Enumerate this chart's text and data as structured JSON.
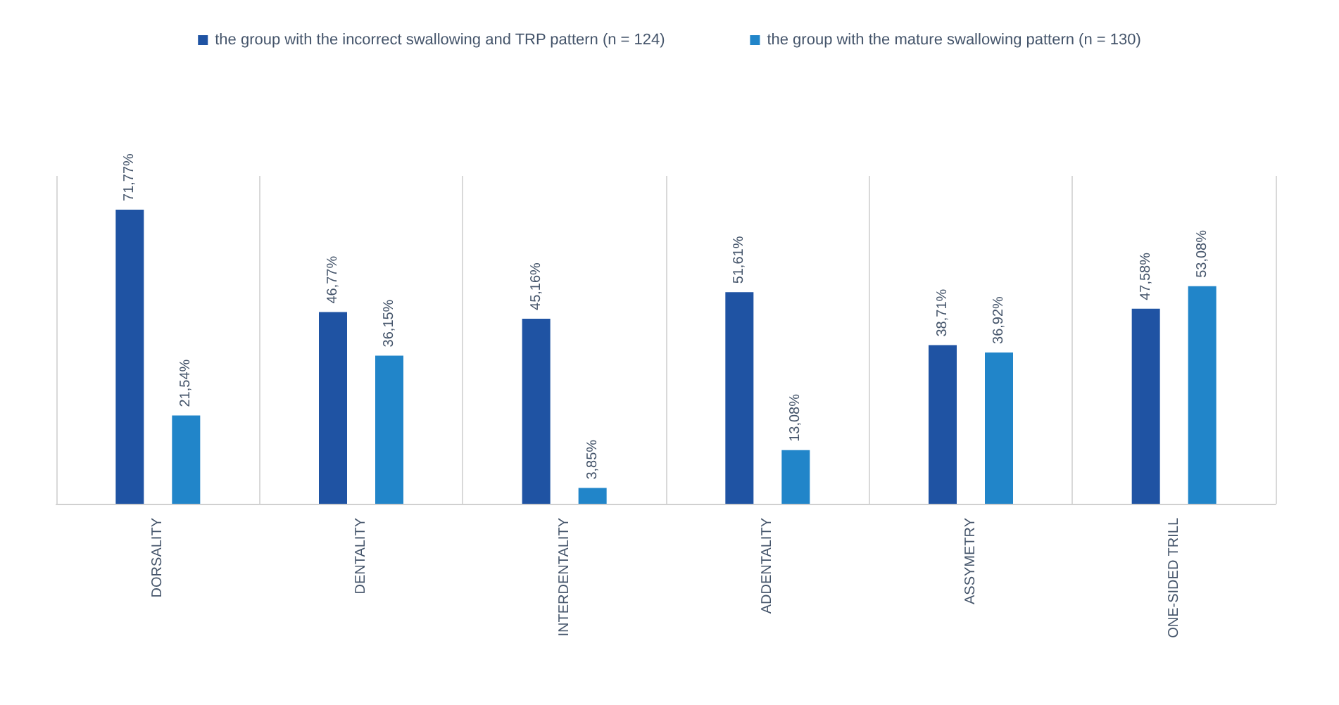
{
  "chart_data": {
    "type": "bar",
    "categories": [
      "DORSALITY",
      "DENTALITY",
      "INTERDENTALITY",
      "ADDENTALITY",
      "ASSYMETRY",
      "ONE-SIDED TRILL"
    ],
    "series": [
      {
        "name": "the group with the incorrect swallowing and TRP pattern (n = 124)",
        "color": "#1f53a3",
        "values": [
          71.77,
          46.77,
          45.16,
          51.61,
          38.71,
          47.58
        ],
        "value_labels": [
          "71,77%",
          "46,77%",
          "45,16%",
          "51,61%",
          "38,71%",
          "47,58%"
        ]
      },
      {
        "name": "the group with the mature swallowing pattern (n = 130)",
        "color": "#2185c9",
        "values": [
          21.54,
          36.15,
          3.85,
          13.08,
          36.92,
          53.08
        ],
        "value_labels": [
          "21,54%",
          "36,15%",
          "3,85%",
          "13,08%",
          "36,92%",
          "53,08%"
        ]
      }
    ],
    "legend": "top",
    "grid": "x"
  }
}
